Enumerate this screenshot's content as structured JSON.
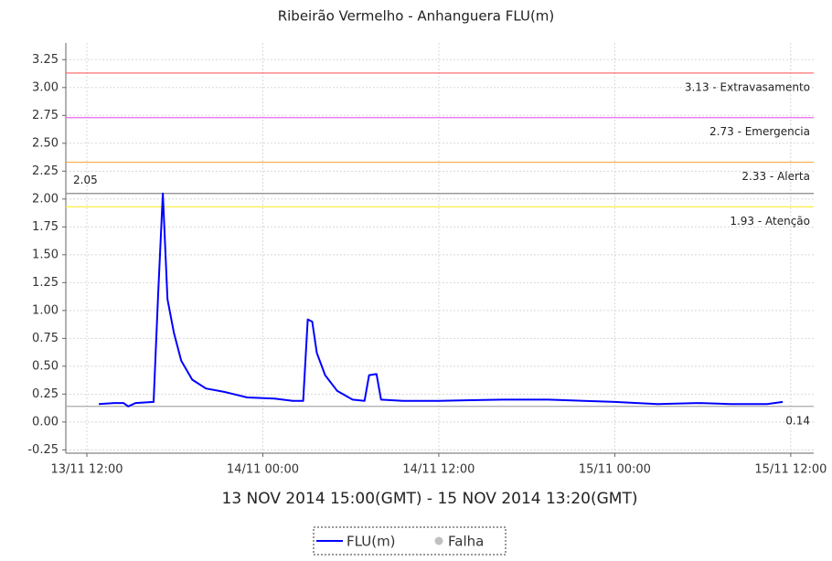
{
  "chart_data": {
    "type": "line",
    "title": "Ribeirão Vermelho - Anhanguera FLU(m)",
    "x_label": "13 NOV 2014 15:00(GMT) - 15 NOV 2014 13:20(GMT)",
    "x": [
      "13/11 12:49",
      "13/11 13:52",
      "13/11 14:30",
      "13/11 14:49",
      "13/11 15:19",
      "13/11 16:33",
      "13/11 16:52",
      "13/11 17:11",
      "13/11 17:30",
      "13/11 17:56",
      "13/11 18:26",
      "13/11 19:11",
      "13/11 20:07",
      "13/11 21:22",
      "13/11 22:56",
      "14/11 00:48",
      "14/11 02:03",
      "14/11 02:45",
      "14/11 03:04",
      "14/11 03:22",
      "14/11 03:41",
      "14/11 04:15",
      "14/11 05:04",
      "14/11 06:07",
      "14/11 06:56",
      "14/11 07:15",
      "14/11 07:45",
      "14/11 08:04",
      "14/11 09:34",
      "14/11 12:00",
      "14/11 16:21",
      "14/11 19:28",
      "15/11 00:00",
      "15/11 02:55",
      "15/11 05:51",
      "15/11 07:54",
      "15/11 10:23",
      "15/11 11:27"
    ],
    "series": [
      {
        "name": "FLU(m)",
        "color": "#0000ff",
        "values": [
          0.16,
          0.17,
          0.17,
          0.14,
          0.17,
          0.18,
          1.15,
          2.05,
          1.1,
          0.8,
          0.55,
          0.38,
          0.3,
          0.27,
          0.22,
          0.21,
          0.19,
          0.19,
          0.92,
          0.9,
          0.62,
          0.42,
          0.28,
          0.2,
          0.19,
          0.42,
          0.43,
          0.2,
          0.19,
          0.19,
          0.2,
          0.2,
          0.18,
          0.16,
          0.17,
          0.16,
          0.16,
          0.18
        ]
      }
    ],
    "fault_marker": {
      "name": "Falha",
      "color": "#c0c0c0"
    },
    "xlim": [
      "13/11 10:34",
      "15/11 13:34"
    ],
    "xticks": [
      "13/11 12:00",
      "14/11 00:00",
      "14/11 12:00",
      "15/11 00:00",
      "15/11 12:00"
    ],
    "ylim": [
      -0.28,
      3.4
    ],
    "yticks": [
      -0.25,
      {
        "value": 0,
        "label": "0.00"
      },
      0.25,
      {
        "value": 0.5,
        "label": "0.50"
      },
      0.75,
      {
        "value": 1,
        "label": "1.00"
      },
      1.25,
      {
        "value": 1.5,
        "label": "1.50"
      },
      1.75,
      {
        "value": 2,
        "label": "2.00"
      },
      2.25,
      {
        "value": 2.5,
        "label": "2.50"
      },
      2.75,
      {
        "value": 3,
        "label": "3.00"
      },
      3.25
    ],
    "grid": true,
    "reference_lines": [
      {
        "value": 3.13,
        "label": "3.13 - Extravasamento",
        "color": "#ff6060",
        "side": "right"
      },
      {
        "value": 2.73,
        "label": "2.73 - Emergencia",
        "color": "#ee66ee",
        "side": "right"
      },
      {
        "value": 2.33,
        "label": "2.33 - Alerta",
        "color": "#ffaa44",
        "side": "right"
      },
      {
        "value": 1.93,
        "label": "1.93 - Atenção",
        "color": "#ffee44",
        "side": "right"
      },
      {
        "value": 2.05,
        "color": "#888888",
        "side": "left"
      },
      {
        "value": 0.14,
        "color": "#aaaaaa",
        "side": "right"
      }
    ]
  }
}
